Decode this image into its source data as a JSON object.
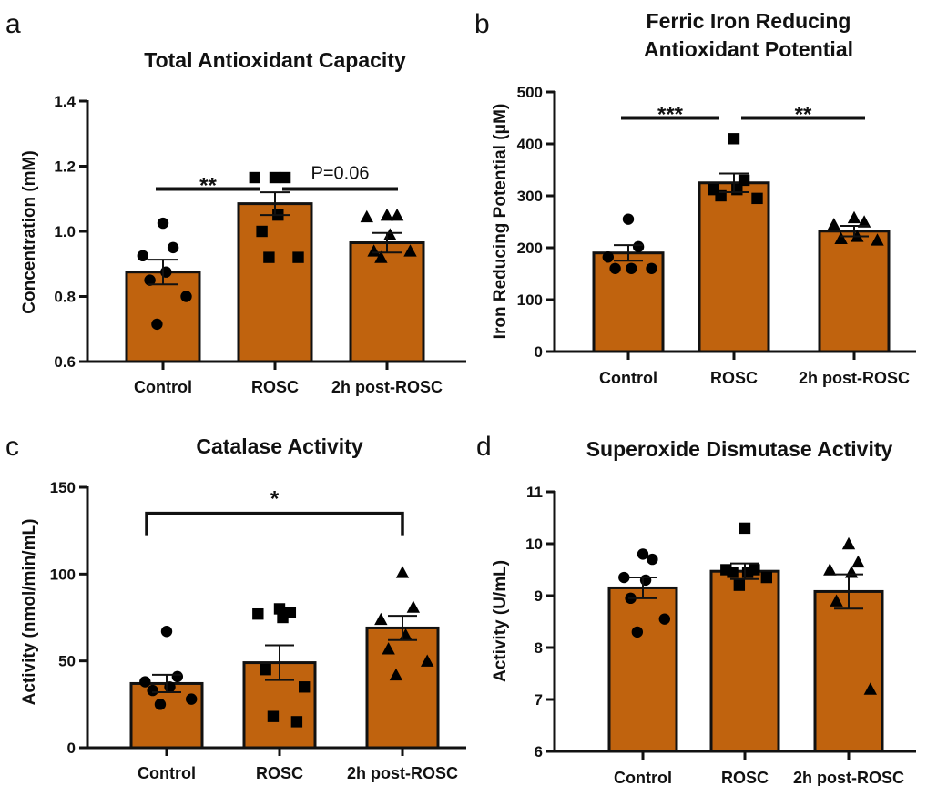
{
  "colors": {
    "bar_fill": "#C0630E",
    "bar_stroke": "#111111",
    "marker": "#000000"
  },
  "panels": [
    {
      "letter": "a"
    },
    {
      "letter": "b"
    },
    {
      "letter": "c"
    },
    {
      "letter": "d"
    }
  ],
  "chart_data": [
    {
      "type": "bar",
      "title": "Total Antioxidant Capacity",
      "ylabel": "Concentration (mM)",
      "categories": [
        "Control",
        "ROSC",
        "2h post-ROSC"
      ],
      "ylim": [
        0.6,
        1.4
      ],
      "yticks": [
        0.6,
        0.8,
        1.0,
        1.2,
        1.4
      ],
      "ytick_labels": [
        "0.6",
        "0.8",
        "1.0",
        "1.2",
        "1.4"
      ],
      "values": [
        0.875,
        1.085,
        0.965
      ],
      "sem": [
        0.038,
        0.035,
        0.03
      ],
      "markers": [
        "circle",
        "square",
        "triangle"
      ],
      "points": [
        [
          1.025,
          0.95,
          0.925,
          0.875,
          0.85,
          0.8,
          0.715
        ],
        [
          1.165,
          1.165,
          1.165,
          1.05,
          1.0,
          0.92,
          0.92
        ],
        [
          1.05,
          1.05,
          1.045,
          0.99,
          0.94,
          0.94,
          0.92
        ]
      ],
      "annotations": [
        {
          "from": 0,
          "to": 1,
          "label": "**",
          "y": 1.13,
          "style": "line"
        },
        {
          "from": 1,
          "to": 2,
          "label": "P=0.06",
          "y": 1.13,
          "style": "line"
        }
      ]
    },
    {
      "type": "bar",
      "title": "Ferric Iron Reducing Antioxidant Potential",
      "title_lines": [
        "Ferric Iron Reducing",
        "Antioxidant Potential"
      ],
      "ylabel": "Iron Reducing Potential (μM)",
      "categories": [
        "Control",
        "ROSC",
        "2h post-ROSC"
      ],
      "ylim": [
        0,
        500
      ],
      "yticks": [
        0,
        100,
        200,
        300,
        400,
        500
      ],
      "ytick_labels": [
        "0",
        "100",
        "200",
        "300",
        "400",
        "500"
      ],
      "values": [
        190,
        325,
        232
      ],
      "sem": [
        15,
        18,
        10
      ],
      "markers": [
        "circle",
        "square",
        "triangle"
      ],
      "points": [
        [
          255,
          202,
          182,
          160,
          160,
          160
        ],
        [
          410,
          330,
          312,
          312,
          300,
          295
        ],
        [
          258,
          250,
          245,
          222,
          218,
          215
        ]
      ],
      "annotations": [
        {
          "from": 0,
          "to": 1,
          "label": "***",
          "y": 450,
          "style": "line"
        },
        {
          "from": 1,
          "to": 2,
          "label": "**",
          "y": 450,
          "style": "line"
        }
      ]
    },
    {
      "type": "bar",
      "title": "Catalase Activity",
      "ylabel": "Activity (nmol/min/mL)",
      "categories": [
        "Control",
        "ROSC",
        "2h post-ROSC"
      ],
      "ylim": [
        0,
        150
      ],
      "yticks": [
        0,
        50,
        100,
        150
      ],
      "ytick_labels": [
        "0",
        "50",
        "100",
        "150"
      ],
      "values": [
        37,
        49,
        69
      ],
      "sem": [
        5,
        10,
        7
      ],
      "markers": [
        "circle",
        "square",
        "triangle"
      ],
      "points": [
        [
          67,
          41,
          38,
          35,
          33,
          28,
          25
        ],
        [
          80,
          78,
          77,
          75,
          45,
          35,
          18,
          15
        ],
        [
          101,
          81,
          74,
          65,
          57,
          50,
          42
        ]
      ],
      "annotations": [
        {
          "from": 0,
          "to": 2,
          "label": "*",
          "y": 135,
          "style": "bracket"
        }
      ]
    },
    {
      "type": "bar",
      "title": "Superoxide Dismutase Activity",
      "ylabel": "Activity (U/mL)",
      "categories": [
        "Control",
        "ROSC",
        "2h post-ROSC"
      ],
      "ylim": [
        6,
        11
      ],
      "yticks": [
        6,
        7,
        8,
        9,
        10,
        11
      ],
      "ytick_labels": [
        "6",
        "7",
        "8",
        "9",
        "10",
        "11"
      ],
      "values": [
        9.15,
        9.47,
        9.08
      ],
      "sem": [
        0.2,
        0.15,
        0.33
      ],
      "markers": [
        "circle",
        "square",
        "triangle"
      ],
      "points": [
        [
          9.8,
          9.7,
          9.35,
          9.3,
          8.95,
          8.55,
          8.3
        ],
        [
          10.3,
          9.5,
          9.5,
          9.45,
          9.45,
          9.35,
          9.2
        ],
        [
          10.0,
          9.65,
          9.5,
          9.45,
          8.9,
          7.2
        ]
      ],
      "annotations": []
    }
  ]
}
